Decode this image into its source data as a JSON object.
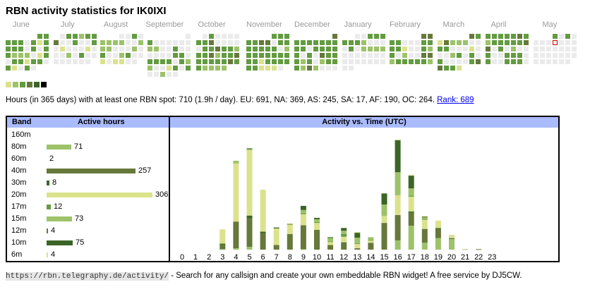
{
  "title": "RBN activity statistics for IK0IXI",
  "months": [
    "June",
    "July",
    "August",
    "September",
    "October",
    "November",
    "December",
    "January",
    "February",
    "March",
    "April",
    "May"
  ],
  "heat_levels": [
    "#ebebeb",
    "#dbe28c",
    "#9dc26a",
    "#629b40",
    "#66783a",
    "#3b6526",
    "#000000"
  ],
  "heatmap": [
    {
      "month": "June",
      "start": 5,
      "cells": "33333031333303033222013033133031030"
    },
    {
      "month": "July",
      "start": 1,
      "cells": "033233400300301000100020300000000"
    },
    {
      "month": "August",
      "start": 3,
      "cells": "0030222200222000203002300101100"
    },
    {
      "month": "September",
      "start": 6,
      "cells": "03000000220030000003303333032200130300200"
    },
    {
      "month": "October",
      "start": 1,
      "cells": "030000334000003343323342334333334332222"
    },
    {
      "month": "November",
      "start": 4,
      "cells": "3333344033333330233333333313333331110"
    },
    {
      "month": "December",
      "start": 6,
      "cells": "433333333303333303043332302333242000"
    },
    {
      "month": "January",
      "start": 2,
      "cells": "00333333200003022220000000000000000"
    },
    {
      "month": "February",
      "start": 5,
      "cells": "443300033331003230200442333332"
    },
    {
      "month": "March",
      "start": 5,
      "cells": "4314222003300010002303030000344331"
    },
    {
      "month": "April",
      "start": 0,
      "cells": "33333432333334403020030033303003330"
    },
    {
      "month": "May",
      "start": 3,
      "cells": "3030000000000000000000000000000"
    }
  ],
  "today_cell": {
    "month": "May",
    "day": 8
  },
  "legend_colors": [
    "#dbe28c",
    "#9dc26a",
    "#629b40",
    "#66783a",
    "#3b6526",
    "#000000"
  ],
  "summary": {
    "text": "Hours (in 365 days) with at least one RBN spot: 710 (1.9h / day). EU: 691, NA: 369, AS: 245, SA: 17, AF: 190, OC: 264.",
    "rank_link": "Rank: 689"
  },
  "bands_table": {
    "header_band": "Band",
    "header_hours": "Active hours",
    "rows": [
      {
        "band": "160m",
        "hours": null,
        "color": "#9dc26a"
      },
      {
        "band": "80m",
        "hours": 71,
        "color": "#9dc26a"
      },
      {
        "band": "60m",
        "hours": 2,
        "color": "#629b40"
      },
      {
        "band": "40m",
        "hours": 257,
        "color": "#66783a"
      },
      {
        "band": "30m",
        "hours": 8,
        "color": "#3b6526"
      },
      {
        "band": "20m",
        "hours": 306,
        "color": "#dbe28c"
      },
      {
        "band": "17m",
        "hours": 12,
        "color": "#629b40"
      },
      {
        "band": "15m",
        "hours": 73,
        "color": "#9dc26a"
      },
      {
        "band": "12m",
        "hours": 4,
        "color": "#66783a"
      },
      {
        "band": "10m",
        "hours": 75,
        "color": "#3b6526"
      },
      {
        "band": "6m",
        "hours": 4,
        "color": "#dbe28c"
      }
    ]
  },
  "chart_data": {
    "type": "bar",
    "title": "Activity vs. Time (UTC)",
    "stacked": true,
    "categories": [
      "0",
      "1",
      "2",
      "3",
      "4",
      "5",
      "6",
      "7",
      "8",
      "9",
      "10",
      "11",
      "12",
      "13",
      "14",
      "15",
      "16",
      "17",
      "18",
      "19",
      "20",
      "21",
      "22",
      "23"
    ],
    "series": [
      {
        "name": "80m",
        "color": "#9dc26a",
        "values": [
          0,
          0,
          0,
          1,
          3,
          6,
          0,
          0,
          0,
          1,
          0,
          0,
          0,
          0,
          0,
          0,
          20,
          52,
          15,
          25,
          24,
          1,
          0,
          0
        ]
      },
      {
        "name": "40m",
        "color": "#66783a",
        "values": [
          0,
          0,
          0,
          11,
          58,
          62,
          36,
          10,
          34,
          52,
          43,
          10,
          16,
          3,
          15,
          58,
          55,
          30,
          30,
          21,
          0,
          0,
          1,
          0
        ]
      },
      {
        "name": "30m",
        "color": "#3b6526",
        "values": [
          0,
          0,
          0,
          1,
          0,
          6,
          3,
          0,
          0,
          0,
          0,
          0,
          0,
          0,
          0,
          0,
          0,
          1,
          0,
          1,
          1,
          0,
          0,
          0
        ]
      },
      {
        "name": "20m",
        "color": "#dbe28c",
        "values": [
          0,
          0,
          0,
          31,
          126,
          142,
          91,
          36,
          21,
          24,
          15,
          7,
          12,
          10,
          5,
          15,
          43,
          32,
          20,
          16,
          7,
          0,
          0,
          0
        ]
      },
      {
        "name": "17m",
        "color": "#629b40",
        "values": [
          0,
          0,
          0,
          0,
          0,
          0,
          0,
          0,
          0,
          2,
          2,
          1,
          6,
          1,
          1,
          0,
          0,
          2,
          2,
          0,
          0,
          0,
          0,
          0
        ]
      },
      {
        "name": "15m",
        "color": "#9dc26a",
        "values": [
          0,
          0,
          0,
          0,
          6,
          3,
          0,
          0,
          0,
          7,
          6,
          8,
          7,
          12,
          6,
          25,
          50,
          16,
          3,
          0,
          0,
          0,
          0,
          0
        ]
      },
      {
        "name": "10m",
        "color": "#3b6526",
        "values": [
          0,
          0,
          0,
          0,
          0,
          1,
          0,
          2,
          1,
          9,
          3,
          1,
          6,
          11,
          0,
          24,
          70,
          28,
          2,
          0,
          0,
          0,
          0,
          0
        ]
      },
      {
        "name": "6m",
        "color": "#dbe28c",
        "values": [
          0,
          0,
          0,
          0,
          0,
          0,
          0,
          0,
          1,
          0,
          0,
          0,
          0,
          1,
          0,
          0,
          1,
          1,
          1,
          0,
          0,
          0,
          0,
          0
        ]
      }
    ],
    "xlabel": "",
    "ylabel": "",
    "ylim": [
      0,
      245
    ],
    "grid": false,
    "legend": "none"
  },
  "footer": {
    "url": "https://rbn.telegraphy.de/activity/",
    "text": " - Search for any callsign and create your own embeddable RBN widget! A free service by DJ5CW."
  }
}
